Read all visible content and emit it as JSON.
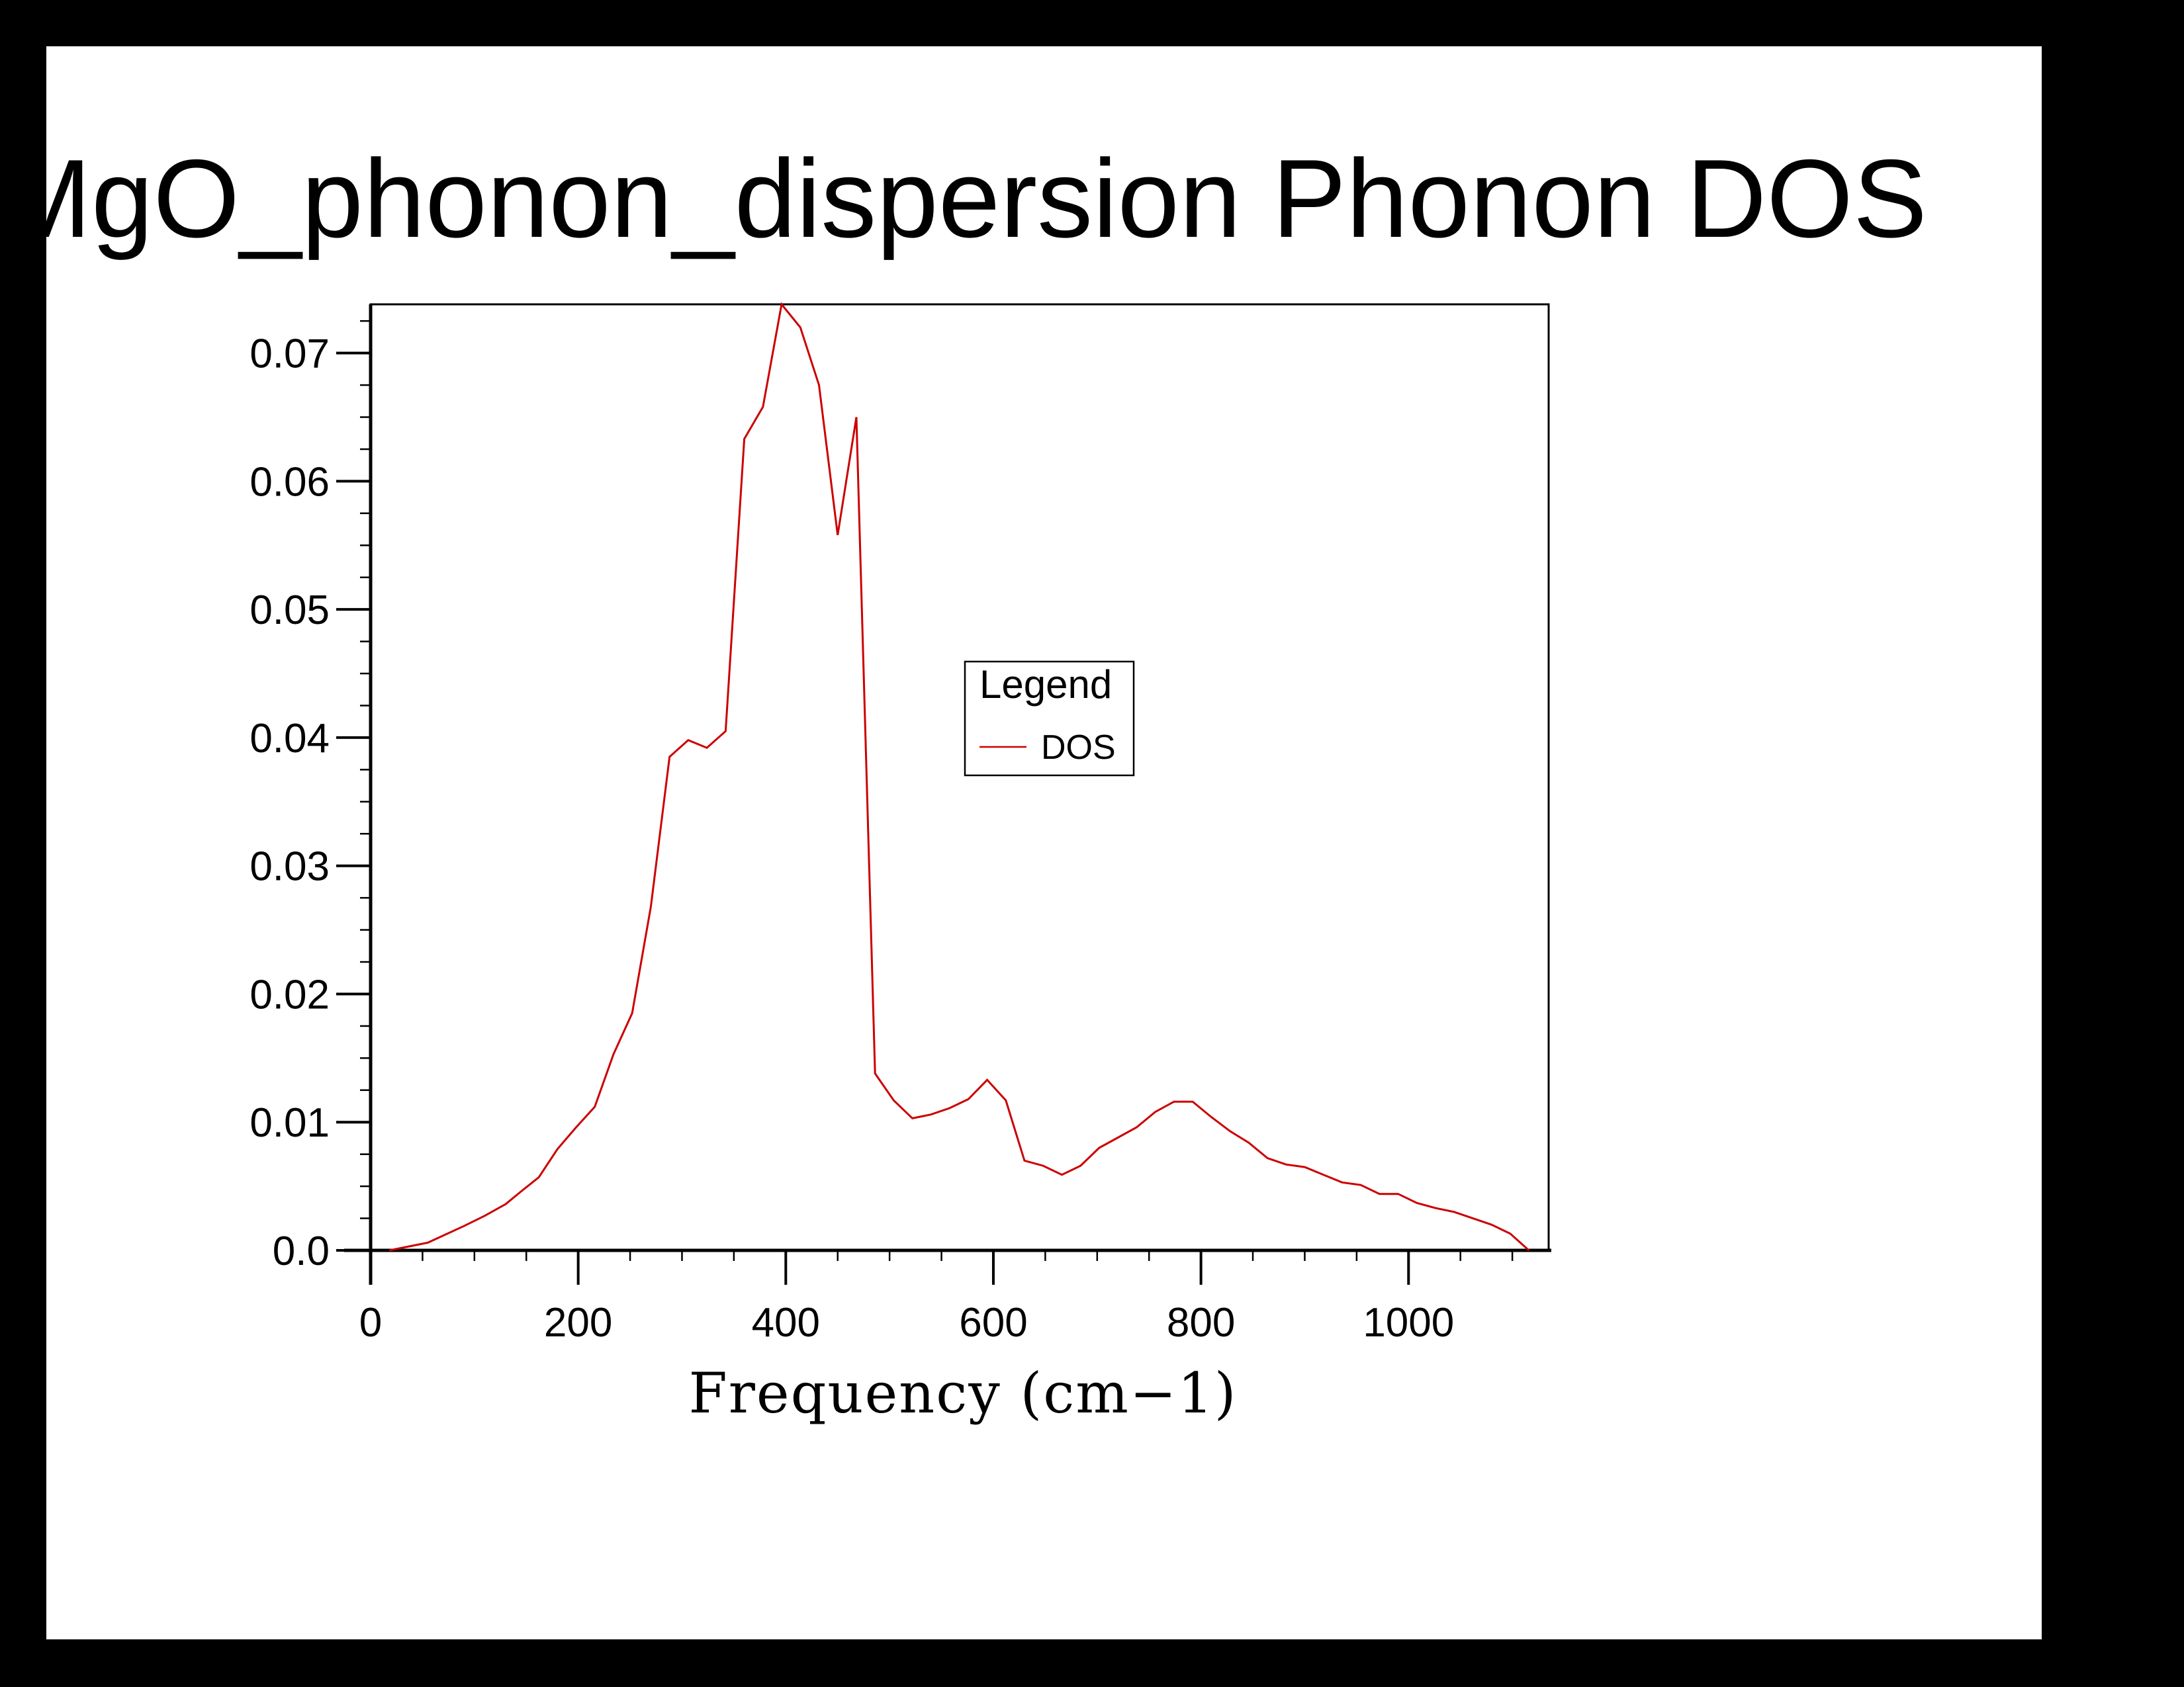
{
  "chart_data": {
    "type": "line",
    "title": "MgO_phonon_dispersion Phonon DOS",
    "xlabel": "Frequency (cm−1)",
    "ylabel": "",
    "xlim": [
      0,
      1135
    ],
    "ylim": [
      0,
      0.0738
    ],
    "x_ticks": [
      0,
      200,
      400,
      600,
      800,
      1000
    ],
    "x_tick_labels": [
      "0",
      "200",
      "400",
      "600",
      "800",
      "1000"
    ],
    "y_ticks": [
      0,
      0.01,
      0.02,
      0.03,
      0.04,
      0.05,
      0.06,
      0.07
    ],
    "y_tick_labels": [
      "0.0",
      "0.01",
      "0.02",
      "0.03",
      "0.04",
      "0.05",
      "0.06",
      "0.07"
    ],
    "grid": false,
    "legend": {
      "title": "Legend",
      "placement": "center-right"
    },
    "series": [
      {
        "name": "DOS",
        "color": "#cc0000",
        "x": [
          18,
          55,
          90,
          110,
          130,
          145,
          162,
          180,
          198,
          216,
          234,
          252,
          270,
          288,
          306,
          324,
          342,
          360,
          378,
          396,
          414,
          432,
          450,
          468,
          486,
          504,
          522,
          540,
          558,
          576,
          594,
          612,
          630,
          648,
          666,
          684,
          702,
          720,
          738,
          756,
          774,
          792,
          810,
          828,
          846,
          864,
          882,
          900,
          918,
          936,
          954,
          972,
          990,
          1008,
          1026,
          1044,
          1062,
          1080,
          1098,
          1116
        ],
        "y": [
          0.0,
          0.0006,
          0.0019,
          0.0027,
          0.0036,
          0.0046,
          0.0057,
          0.0079,
          0.0096,
          0.0112,
          0.0153,
          0.0185,
          0.0268,
          0.0385,
          0.0398,
          0.0392,
          0.0405,
          0.0633,
          0.0658,
          0.0738,
          0.072,
          0.0675,
          0.0558,
          0.065,
          0.0138,
          0.0117,
          0.0103,
          0.0106,
          0.0111,
          0.0118,
          0.0133,
          0.0117,
          0.007,
          0.0066,
          0.0059,
          0.0066,
          0.008,
          0.0088,
          0.0096,
          0.0108,
          0.0116,
          0.0116,
          0.0104,
          0.0093,
          0.0084,
          0.0072,
          0.0067,
          0.0065,
          0.0059,
          0.0053,
          0.0051,
          0.0044,
          0.0044,
          0.0037,
          0.0033,
          0.003,
          0.0025,
          0.002,
          0.0013,
          0.0
        ]
      }
    ]
  }
}
